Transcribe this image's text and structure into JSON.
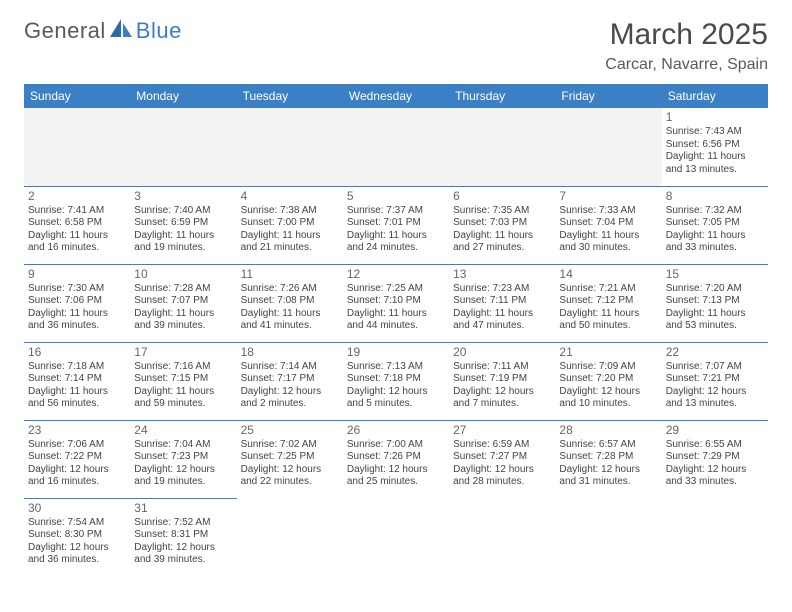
{
  "logo": {
    "part1": "General",
    "part2": "Blue"
  },
  "title": "March 2025",
  "location": "Carcar, Navarre, Spain",
  "colors": {
    "header_bg": "#3b7fc4",
    "header_text": "#ffffff",
    "cell_border": "#3b7fc4",
    "empty_bg": "#f3f3f3",
    "text": "#444444",
    "logo_gray": "#5a5a5a",
    "logo_blue": "#3b7fc4"
  },
  "day_headers": [
    "Sunday",
    "Monday",
    "Tuesday",
    "Wednesday",
    "Thursday",
    "Friday",
    "Saturday"
  ],
  "weeks": [
    [
      {
        "blank": true
      },
      {
        "blank": true
      },
      {
        "blank": true
      },
      {
        "blank": true
      },
      {
        "blank": true
      },
      {
        "blank": true
      },
      {
        "n": "1",
        "sr": "Sunrise: 7:43 AM",
        "ss": "Sunset: 6:56 PM",
        "dl": "Daylight: 11 hours and 13 minutes."
      }
    ],
    [
      {
        "n": "2",
        "sr": "Sunrise: 7:41 AM",
        "ss": "Sunset: 6:58 PM",
        "dl": "Daylight: 11 hours and 16 minutes."
      },
      {
        "n": "3",
        "sr": "Sunrise: 7:40 AM",
        "ss": "Sunset: 6:59 PM",
        "dl": "Daylight: 11 hours and 19 minutes."
      },
      {
        "n": "4",
        "sr": "Sunrise: 7:38 AM",
        "ss": "Sunset: 7:00 PM",
        "dl": "Daylight: 11 hours and 21 minutes."
      },
      {
        "n": "5",
        "sr": "Sunrise: 7:37 AM",
        "ss": "Sunset: 7:01 PM",
        "dl": "Daylight: 11 hours and 24 minutes."
      },
      {
        "n": "6",
        "sr": "Sunrise: 7:35 AM",
        "ss": "Sunset: 7:03 PM",
        "dl": "Daylight: 11 hours and 27 minutes."
      },
      {
        "n": "7",
        "sr": "Sunrise: 7:33 AM",
        "ss": "Sunset: 7:04 PM",
        "dl": "Daylight: 11 hours and 30 minutes."
      },
      {
        "n": "8",
        "sr": "Sunrise: 7:32 AM",
        "ss": "Sunset: 7:05 PM",
        "dl": "Daylight: 11 hours and 33 minutes."
      }
    ],
    [
      {
        "n": "9",
        "sr": "Sunrise: 7:30 AM",
        "ss": "Sunset: 7:06 PM",
        "dl": "Daylight: 11 hours and 36 minutes."
      },
      {
        "n": "10",
        "sr": "Sunrise: 7:28 AM",
        "ss": "Sunset: 7:07 PM",
        "dl": "Daylight: 11 hours and 39 minutes."
      },
      {
        "n": "11",
        "sr": "Sunrise: 7:26 AM",
        "ss": "Sunset: 7:08 PM",
        "dl": "Daylight: 11 hours and 41 minutes."
      },
      {
        "n": "12",
        "sr": "Sunrise: 7:25 AM",
        "ss": "Sunset: 7:10 PM",
        "dl": "Daylight: 11 hours and 44 minutes."
      },
      {
        "n": "13",
        "sr": "Sunrise: 7:23 AM",
        "ss": "Sunset: 7:11 PM",
        "dl": "Daylight: 11 hours and 47 minutes."
      },
      {
        "n": "14",
        "sr": "Sunrise: 7:21 AM",
        "ss": "Sunset: 7:12 PM",
        "dl": "Daylight: 11 hours and 50 minutes."
      },
      {
        "n": "15",
        "sr": "Sunrise: 7:20 AM",
        "ss": "Sunset: 7:13 PM",
        "dl": "Daylight: 11 hours and 53 minutes."
      }
    ],
    [
      {
        "n": "16",
        "sr": "Sunrise: 7:18 AM",
        "ss": "Sunset: 7:14 PM",
        "dl": "Daylight: 11 hours and 56 minutes."
      },
      {
        "n": "17",
        "sr": "Sunrise: 7:16 AM",
        "ss": "Sunset: 7:15 PM",
        "dl": "Daylight: 11 hours and 59 minutes."
      },
      {
        "n": "18",
        "sr": "Sunrise: 7:14 AM",
        "ss": "Sunset: 7:17 PM",
        "dl": "Daylight: 12 hours and 2 minutes."
      },
      {
        "n": "19",
        "sr": "Sunrise: 7:13 AM",
        "ss": "Sunset: 7:18 PM",
        "dl": "Daylight: 12 hours and 5 minutes."
      },
      {
        "n": "20",
        "sr": "Sunrise: 7:11 AM",
        "ss": "Sunset: 7:19 PM",
        "dl": "Daylight: 12 hours and 7 minutes."
      },
      {
        "n": "21",
        "sr": "Sunrise: 7:09 AM",
        "ss": "Sunset: 7:20 PM",
        "dl": "Daylight: 12 hours and 10 minutes."
      },
      {
        "n": "22",
        "sr": "Sunrise: 7:07 AM",
        "ss": "Sunset: 7:21 PM",
        "dl": "Daylight: 12 hours and 13 minutes."
      }
    ],
    [
      {
        "n": "23",
        "sr": "Sunrise: 7:06 AM",
        "ss": "Sunset: 7:22 PM",
        "dl": "Daylight: 12 hours and 16 minutes."
      },
      {
        "n": "24",
        "sr": "Sunrise: 7:04 AM",
        "ss": "Sunset: 7:23 PM",
        "dl": "Daylight: 12 hours and 19 minutes."
      },
      {
        "n": "25",
        "sr": "Sunrise: 7:02 AM",
        "ss": "Sunset: 7:25 PM",
        "dl": "Daylight: 12 hours and 22 minutes."
      },
      {
        "n": "26",
        "sr": "Sunrise: 7:00 AM",
        "ss": "Sunset: 7:26 PM",
        "dl": "Daylight: 12 hours and 25 minutes."
      },
      {
        "n": "27",
        "sr": "Sunrise: 6:59 AM",
        "ss": "Sunset: 7:27 PM",
        "dl": "Daylight: 12 hours and 28 minutes."
      },
      {
        "n": "28",
        "sr": "Sunrise: 6:57 AM",
        "ss": "Sunset: 7:28 PM",
        "dl": "Daylight: 12 hours and 31 minutes."
      },
      {
        "n": "29",
        "sr": "Sunrise: 6:55 AM",
        "ss": "Sunset: 7:29 PM",
        "dl": "Daylight: 12 hours and 33 minutes."
      }
    ],
    [
      {
        "n": "30",
        "sr": "Sunrise: 7:54 AM",
        "ss": "Sunset: 8:30 PM",
        "dl": "Daylight: 12 hours and 36 minutes."
      },
      {
        "n": "31",
        "sr": "Sunrise: 7:52 AM",
        "ss": "Sunset: 8:31 PM",
        "dl": "Daylight: 12 hours and 39 minutes."
      },
      {
        "blank": true
      },
      {
        "blank": true
      },
      {
        "blank": true
      },
      {
        "blank": true
      },
      {
        "blank": true
      }
    ]
  ]
}
